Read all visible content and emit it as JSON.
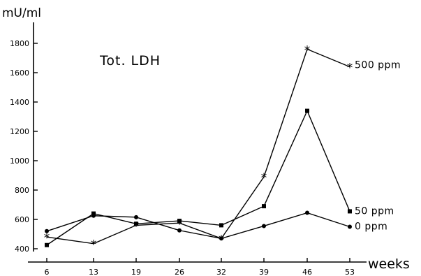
{
  "chart_data": {
    "type": "line",
    "title": "Tot. LDH",
    "ylabel": "mU/ml",
    "xlabel": "weeks",
    "x": [
      6,
      13,
      19,
      26,
      32,
      39,
      46,
      53
    ],
    "x_tick_labels": [
      "6",
      "13",
      "19",
      "26",
      "32",
      "39",
      "46",
      "53"
    ],
    "ylim": [
      400,
      1800
    ],
    "y_ticks": [
      400,
      600,
      800,
      1000,
      1200,
      1400,
      1600,
      1800
    ],
    "y_tick_labels": [
      "400",
      "600",
      "800",
      "1000",
      "1200",
      "1400",
      "1600",
      "1800"
    ],
    "grid": false,
    "legend": "inline labels at right end of each series",
    "series": [
      {
        "name": "500 ppm",
        "marker": "star",
        "values": [
          480,
          435,
          560,
          575,
          470,
          890,
          1760,
          1640
        ]
      },
      {
        "name": "50 ppm",
        "marker": "square",
        "values": [
          425,
          640,
          570,
          590,
          560,
          690,
          1340,
          655
        ]
      },
      {
        "name": "0 ppm",
        "marker": "circle",
        "values": [
          520,
          625,
          615,
          525,
          470,
          555,
          645,
          550
        ]
      }
    ]
  }
}
